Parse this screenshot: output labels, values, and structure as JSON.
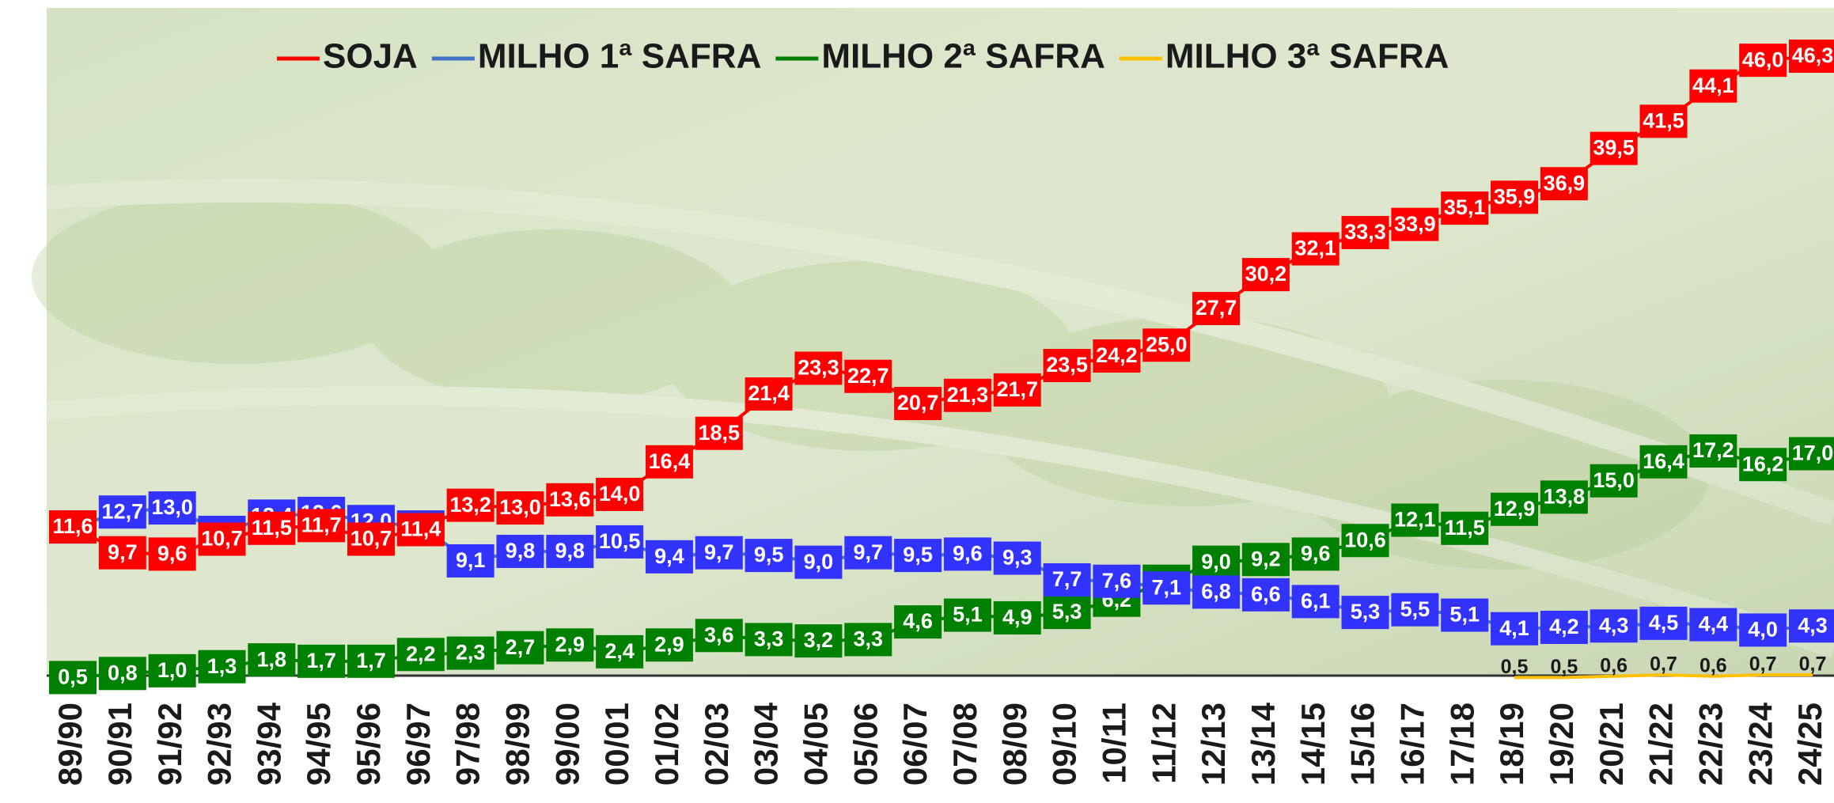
{
  "chart_data": {
    "type": "line",
    "categories": [
      "89/90",
      "90/91",
      "91/92",
      "92/93",
      "93/94",
      "94/95",
      "95/96",
      "96/97",
      "97/98",
      "98/99",
      "99/00",
      "00/01",
      "01/02",
      "02/03",
      "03/04",
      "04/05",
      "05/06",
      "06/07",
      "07/08",
      "08/09",
      "09/10",
      "10/11",
      "11/12",
      "12/13",
      "13/14",
      "14/15",
      "15/16",
      "16/17",
      "17/18",
      "18/19",
      "19/20",
      "20/21",
      "21/22",
      "22/23",
      "23/24",
      "24/25"
    ],
    "ylim": [
      0,
      47
    ],
    "legend": "top",
    "series": [
      {
        "name": "SOJA",
        "color": "#ff0000",
        "values": [
          11.6,
          9.7,
          9.6,
          10.7,
          11.5,
          11.7,
          10.7,
          11.4,
          13.2,
          13.0,
          13.6,
          14.0,
          16.4,
          18.5,
          21.4,
          23.3,
          22.7,
          20.7,
          21.3,
          21.7,
          23.5,
          24.2,
          25.0,
          27.7,
          30.2,
          32.1,
          33.3,
          33.9,
          35.1,
          35.9,
          36.9,
          39.5,
          41.5,
          44.1,
          46.0,
          46.3
        ],
        "value_labels": [
          "11,6",
          "9,7",
          "9,6",
          "10,7",
          "11,5",
          "11,7",
          "10,7",
          "11,4",
          "13,2",
          "13,0",
          "13,6",
          "14,0",
          "16,4",
          "18,5",
          "21,4",
          "23,3",
          "22,7",
          "20,7",
          "21,3",
          "21,7",
          "23,5",
          "24,2",
          "25,0",
          "27,7",
          "30,2",
          "32,1",
          "33,3",
          "33,9",
          "35,1",
          "35,9",
          "36,9",
          "39,5",
          "41,5",
          "44,1",
          "46,0",
          "46,3"
        ]
      },
      {
        "name": "MILHO 1ª SAFRA",
        "color": "#4472c4",
        "label_color": "#3333ff",
        "values": [
          11.6,
          12.7,
          13.0,
          11.2,
          12.4,
          12.6,
          12.0,
          11.6,
          9.1,
          9.8,
          9.8,
          10.5,
          9.4,
          9.7,
          9.5,
          9.0,
          9.7,
          9.5,
          9.6,
          9.3,
          7.7,
          7.6,
          7.1,
          6.8,
          6.6,
          6.1,
          5.3,
          5.5,
          5.1,
          4.1,
          4.2,
          4.3,
          4.5,
          4.4,
          4.0,
          4.3
        ],
        "value_labels": [
          "11,6",
          "12,7",
          "13,0",
          "11,2",
          "12,4",
          "12,6",
          "12,0",
          "11,6",
          "9,1",
          "9,8",
          "9,8",
          "10,5",
          "9,4",
          "9,7",
          "9,5",
          "9,0",
          "9,7",
          "9,5",
          "9,6",
          "9,3",
          "7,7",
          "7,6",
          "7,1",
          "6,8",
          "6,6",
          "6,1",
          "5,3",
          "5,5",
          "5,1",
          "4,1",
          "4,2",
          "4,3",
          "4,5",
          "4,4",
          "4,0",
          "4,3"
        ]
      },
      {
        "name": "MILHO 2ª SAFRA",
        "color": "#008000",
        "values": [
          0.5,
          0.8,
          1.0,
          1.3,
          1.8,
          1.7,
          1.7,
          2.2,
          2.3,
          2.7,
          2.9,
          2.4,
          2.9,
          3.6,
          3.3,
          3.2,
          3.3,
          4.6,
          5.1,
          4.9,
          5.3,
          6.2,
          7.6,
          9.0,
          9.2,
          9.6,
          10.6,
          12.1,
          11.5,
          12.9,
          13.8,
          15.0,
          16.4,
          17.2,
          16.2,
          17.0
        ],
        "value_labels": [
          "0,5",
          "0,8",
          "1,0",
          "1,3",
          "1,8",
          "1,7",
          "1,7",
          "2,2",
          "2,3",
          "2,7",
          "2,9",
          "2,4",
          "2,9",
          "3,6",
          "3,3",
          "3,2",
          "3,3",
          "4,6",
          "5,1",
          "4,9",
          "5,3",
          "6,2",
          "7,6",
          "9,0",
          "9,2",
          "9,6",
          "10,6",
          "12,1",
          "11,5",
          "12,9",
          "13,8",
          "15,0",
          "16,4",
          "17,2",
          "16,2",
          "17,0"
        ]
      },
      {
        "name": "MILHO 3ª SAFRA",
        "color": "#ffc000",
        "label_color": "none",
        "values": [
          null,
          null,
          null,
          null,
          null,
          null,
          null,
          null,
          null,
          null,
          null,
          null,
          null,
          null,
          null,
          null,
          null,
          null,
          null,
          null,
          null,
          null,
          null,
          null,
          null,
          null,
          null,
          null,
          null,
          0.5,
          0.5,
          0.6,
          0.7,
          0.6,
          0.7,
          0.7
        ],
        "value_labels": [
          null,
          null,
          null,
          null,
          null,
          null,
          null,
          null,
          null,
          null,
          null,
          null,
          null,
          null,
          null,
          null,
          null,
          null,
          null,
          null,
          null,
          null,
          null,
          null,
          null,
          null,
          null,
          null,
          null,
          "0,5",
          "0,5",
          "0,6",
          "0,7",
          "0,6",
          "0,7",
          "0,7"
        ]
      }
    ]
  }
}
